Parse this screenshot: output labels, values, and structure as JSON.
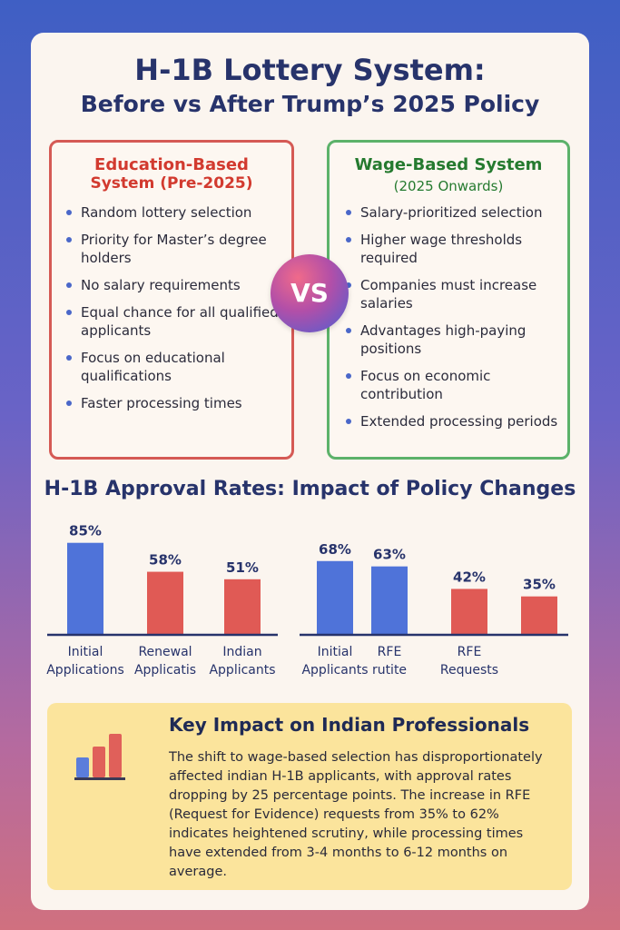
{
  "header": {
    "title_line1": "H-1B Lottery System:",
    "title_line2": "Before vs After Trump’s 2025 Policy"
  },
  "left_box": {
    "heading_line1": "Education-Based",
    "heading_line2": "System (Pre-2025)",
    "color": "#d55a55",
    "items": [
      "Random lottery selection",
      "Priority for Master’s degree holders",
      "No salary requirements",
      "Equal chance for all qualified applicants",
      "Focus on educational qualifications",
      "Faster processing times"
    ]
  },
  "right_box": {
    "heading_line1": "Wage-Based System",
    "heading_line2": "(2025 Onwards)",
    "color": "#5cb26a",
    "items": [
      "Salary-prioritized selection",
      "Higher wage thresholds required",
      "Companies must increase salaries",
      "Advantages high-paying positions",
      "Focus on economic contribution",
      "Extended processing periods"
    ]
  },
  "vs_label": "VS",
  "chart_section_title": "H-1B Approval Rates: Impact of Policy Changes",
  "chart_data": [
    {
      "type": "bar",
      "title": "",
      "categories": [
        "Initial Applications",
        "Renewal Applicatis",
        "Indian Applicants"
      ],
      "category_lines": [
        [
          "Initial",
          "Applications"
        ],
        [
          "Renewal",
          "Applicatis"
        ],
        [
          "Indian",
          "Applicants"
        ]
      ],
      "values": [
        85,
        58,
        51
      ],
      "labels": [
        "85%",
        "58%",
        "51%"
      ],
      "colors": [
        "#4f73d9",
        "#e05a55",
        "#e05a55"
      ],
      "ylim": [
        0,
        100
      ]
    },
    {
      "type": "bar",
      "title": "",
      "categories": [
        "Initial Applicants",
        "RFE rutite",
        "RFE Requests",
        ""
      ],
      "category_lines": [
        [
          "Initial",
          "Applicants"
        ],
        [
          "RFE",
          "rutite"
        ],
        [
          "RFE",
          "Requests"
        ],
        [
          "",
          ""
        ]
      ],
      "values": [
        68,
        63,
        42,
        35
      ],
      "labels": [
        "68%",
        "63%",
        "42%",
        "35%"
      ],
      "colors": [
        "#4f73d9",
        "#4f73d9",
        "#e05a55",
        "#e05a55"
      ],
      "ylim": [
        0,
        100
      ]
    }
  ],
  "key_impact": {
    "heading": "Key Impact on Indian Professionals",
    "body": "The shift to wage-based selection has disproportionately affected indian H-1B applicants, with approval rates dropping by 25 percentage points. The increase in RFE (Request for Evidence) requests from 35% to 62% indicates heightened scrutiny, while processing times have extended from 3-4 months to 6-12 months on average.",
    "icon": "bar-chart-icon"
  }
}
